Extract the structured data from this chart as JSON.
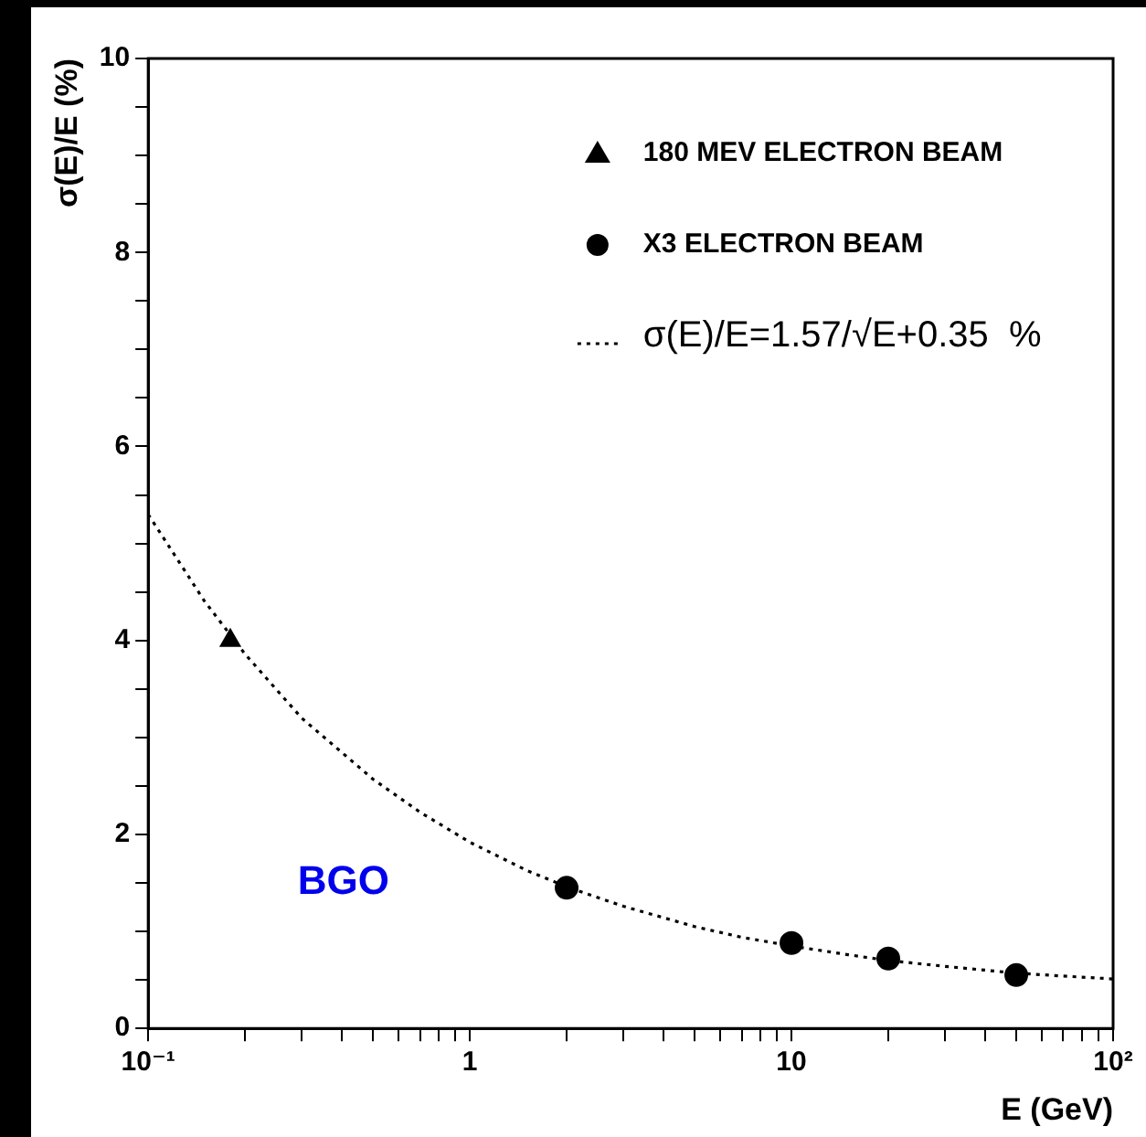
{
  "chart_data": {
    "type": "scatter",
    "xlabel": "E (GeV)",
    "ylabel": "σ(E)/E (%)",
    "log": "x",
    "xlim": [
      0.1,
      100
    ],
    "ylim": [
      0,
      10
    ],
    "xticks": [
      {
        "value": 0.1,
        "label": "10⁻¹"
      },
      {
        "value": 0.2,
        "label": null
      },
      {
        "value": 0.3,
        "label": null
      },
      {
        "value": 0.4,
        "label": null
      },
      {
        "value": 0.5,
        "label": null
      },
      {
        "value": 0.6,
        "label": null
      },
      {
        "value": 0.7,
        "label": null
      },
      {
        "value": 0.8,
        "label": null
      },
      {
        "value": 0.9,
        "label": null
      },
      1,
      {
        "value": 2,
        "label": null
      },
      {
        "value": 3,
        "label": null
      },
      {
        "value": 4,
        "label": null
      },
      {
        "value": 5,
        "label": null
      },
      {
        "value": 6,
        "label": null
      },
      {
        "value": 7,
        "label": null
      },
      {
        "value": 8,
        "label": null
      },
      {
        "value": 9,
        "label": null
      },
      10,
      {
        "value": 20,
        "label": null
      },
      {
        "value": 30,
        "label": null
      },
      {
        "value": 40,
        "label": null
      },
      {
        "value": 50,
        "label": null
      },
      {
        "value": 60,
        "label": null
      },
      {
        "value": 70,
        "label": null
      },
      {
        "value": 80,
        "label": null
      },
      {
        "value": 90,
        "label": null
      },
      {
        "value": 100,
        "label": "10²"
      }
    ],
    "yticks": [
      0,
      {
        "value": 0.5,
        "label": null
      },
      {
        "value": 1,
        "label": null
      },
      {
        "value": 1.5,
        "label": null
      },
      2,
      {
        "value": 2.5,
        "label": null
      },
      {
        "value": 3,
        "label": null
      },
      {
        "value": 3.5,
        "label": null
      },
      4,
      {
        "value": 4.5,
        "label": null
      },
      {
        "value": 5,
        "label": null
      },
      {
        "value": 5.5,
        "label": null
      },
      6,
      {
        "value": 6.5,
        "label": null
      },
      {
        "value": 7,
        "label": null
      },
      {
        "value": 7.5,
        "label": null
      },
      8,
      {
        "value": 8.5,
        "label": null
      },
      {
        "value": 9,
        "label": null
      },
      {
        "value": 9.5,
        "label": null
      },
      10
    ],
    "grid": false,
    "legend": "top right",
    "series": [
      {
        "name": "180 MEV ELECTRON BEAM",
        "marker": "triangle",
        "color": "#000000",
        "x": [
          0.18
        ],
        "values": [
          4.0
        ]
      },
      {
        "name": "X3 ELECTRON BEAM",
        "marker": "circle",
        "color": "#000000",
        "x": [
          2,
          10,
          20,
          50
        ],
        "values": [
          1.45,
          0.88,
          0.72,
          0.55
        ]
      },
      {
        "name": "σ(E)/E=1.57/√E+0.35  %",
        "type": "line",
        "marker": "none",
        "line_style": "dotted",
        "color": "#000000",
        "x": [
          0.1,
          0.15,
          0.2,
          0.3,
          0.5,
          0.7,
          1,
          1.5,
          2,
          3,
          5,
          7,
          10,
          15,
          20,
          30,
          50,
          70,
          100
        ],
        "values": [
          5.3,
          4.4,
          3.86,
          3.2,
          2.57,
          2.23,
          1.92,
          1.63,
          1.46,
          1.26,
          1.05,
          0.94,
          0.85,
          0.76,
          0.7,
          0.64,
          0.57,
          0.54,
          0.51
        ]
      }
    ],
    "annotations": [
      "BGO"
    ]
  }
}
